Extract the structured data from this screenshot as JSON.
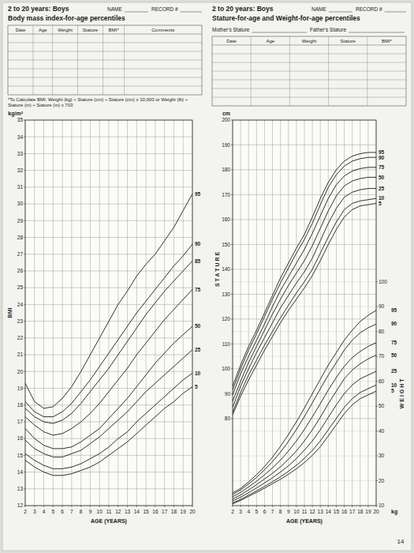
{
  "page": {
    "number": "14",
    "panels": [
      {
        "name_label": "NAME",
        "record_label": "RECORD #",
        "form_columns": [
          "Date",
          "Age",
          "Weight",
          "Stature",
          "BMI*",
          "Comments"
        ],
        "note": "*To Calculate BMI: Weight (kg) ÷ Stature (cm) ÷ Stature (cm) x 10,000 or Weight (lb) ÷ Stature (in) ÷ Stature (in) x 703"
      },
      {
        "name_label": "NAME",
        "record_label": "RECORD #",
        "parent_labels": [
          "Mother's Stature",
          "Father's Stature"
        ],
        "form_columns": [
          "Date",
          "Age",
          "Weight",
          "Stature",
          "BMI*"
        ]
      }
    ]
  },
  "chart_data": [
    {
      "type": "line",
      "title": "2 to 20 years: Boys",
      "subtitle": "Body mass index-for-age percentiles",
      "x_label": "AGE (YEARS)",
      "y_label": "BMI",
      "annotations": [
        "kg/m²"
      ],
      "x": [
        2,
        3,
        4,
        5,
        6,
        7,
        8,
        9,
        10,
        11,
        12,
        13,
        14,
        15,
        16,
        17,
        18,
        19,
        20
      ],
      "xlim": [
        2,
        20
      ],
      "xticks": [
        2,
        3,
        4,
        5,
        6,
        7,
        8,
        9,
        10,
        11,
        12,
        13,
        14,
        15,
        16,
        17,
        18,
        19,
        20
      ],
      "ylim": [
        12,
        35
      ],
      "yticks": [
        12,
        13,
        14,
        15,
        16,
        17,
        18,
        19,
        20,
        21,
        22,
        23,
        24,
        25,
        26,
        27,
        28,
        29,
        30,
        31,
        32,
        33,
        34,
        35
      ],
      "grid": true,
      "series": [
        {
          "name": "5",
          "color": "#1a1a1a",
          "values": [
            14.7,
            14.3,
            14.0,
            13.8,
            13.8,
            13.9,
            14.1,
            14.3,
            14.6,
            15.0,
            15.4,
            15.8,
            16.3,
            16.8,
            17.3,
            17.8,
            18.2,
            18.7,
            19.1
          ]
        },
        {
          "name": "10",
          "color": "#1a1a1a",
          "values": [
            15.1,
            14.7,
            14.4,
            14.2,
            14.2,
            14.3,
            14.5,
            14.8,
            15.1,
            15.5,
            16.0,
            16.4,
            17.0,
            17.5,
            18.0,
            18.5,
            19.0,
            19.5,
            19.9
          ]
        },
        {
          "name": "25",
          "color": "#1a1a1a",
          "values": [
            15.9,
            15.4,
            15.1,
            14.9,
            14.9,
            15.1,
            15.3,
            15.7,
            16.1,
            16.6,
            17.1,
            17.6,
            18.2,
            18.8,
            19.3,
            19.8,
            20.3,
            20.8,
            21.3
          ]
        },
        {
          "name": "50",
          "color": "#1a1a1a",
          "values": [
            16.6,
            16.0,
            15.6,
            15.4,
            15.4,
            15.5,
            15.8,
            16.2,
            16.6,
            17.2,
            17.8,
            18.4,
            19.1,
            19.8,
            20.5,
            21.1,
            21.7,
            22.2,
            22.7
          ]
        },
        {
          "name": "75",
          "color": "#1a1a1a",
          "values": [
            17.3,
            16.8,
            16.4,
            16.2,
            16.3,
            16.6,
            17.0,
            17.5,
            18.1,
            18.8,
            19.5,
            20.2,
            21.0,
            21.7,
            22.4,
            23.1,
            23.7,
            24.3,
            24.9
          ]
        },
        {
          "name": "85",
          "color": "#1a1a1a",
          "values": [
            17.8,
            17.3,
            17.0,
            16.9,
            17.1,
            17.5,
            18.1,
            18.8,
            19.5,
            20.2,
            21.0,
            21.8,
            22.6,
            23.4,
            24.1,
            24.8,
            25.4,
            26.0,
            26.6
          ]
        },
        {
          "name": "90",
          "color": "#1a1a1a",
          "values": [
            18.2,
            17.6,
            17.3,
            17.3,
            17.6,
            18.1,
            18.8,
            19.5,
            20.3,
            21.1,
            21.9,
            22.7,
            23.5,
            24.2,
            24.9,
            25.6,
            26.3,
            26.9,
            27.6
          ]
        },
        {
          "name": "95",
          "color": "#1a1a1a",
          "values": [
            19.3,
            18.2,
            17.8,
            17.9,
            18.4,
            19.1,
            20.0,
            21.0,
            22.0,
            23.0,
            24.0,
            24.8,
            25.7,
            26.4,
            27.0,
            27.8,
            28.6,
            29.6,
            30.6
          ]
        }
      ]
    },
    {
      "type": "line",
      "title": "2 to 20 years: Boys",
      "subtitle": "Stature-for-age and Weight-for-age percentiles",
      "x_label": "AGE (YEARS)",
      "y_label": "S T A T U R E",
      "y2_label": "W E I G H T",
      "annotations": [
        "cm",
        "kg"
      ],
      "x": [
        2,
        3,
        4,
        5,
        6,
        7,
        8,
        9,
        10,
        11,
        12,
        13,
        14,
        15,
        16,
        17,
        18,
        19,
        20
      ],
      "xlim": [
        2,
        20
      ],
      "xticks": [
        2,
        3,
        4,
        5,
        6,
        7,
        8,
        9,
        10,
        11,
        12,
        13,
        14,
        15,
        16,
        17,
        18,
        19,
        20
      ],
      "ylim": [
        45,
        200
      ],
      "yticks": [
        80,
        90,
        100,
        110,
        120,
        130,
        140,
        150,
        160,
        170,
        180,
        190,
        200
      ],
      "y2lim": [
        10,
        165
      ],
      "y2ticks": [
        10,
        20,
        30,
        40,
        50,
        60,
        70,
        80,
        90,
        100
      ],
      "grid": true,
      "series": [
        {
          "name": "5",
          "color": "#1a1a1a",
          "values": [
            81.5,
            89,
            95.5,
            101.5,
            107.5,
            113,
            118.5,
            123.5,
            128,
            132.5,
            137.5,
            143.5,
            150,
            156,
            161,
            164,
            165.5,
            166,
            166.5
          ]
        },
        {
          "name": "10",
          "color": "#1a1a1a",
          "values": [
            82.5,
            90.5,
            97.5,
            103.5,
            109.5,
            115,
            120.5,
            125.5,
            130.5,
            135,
            140,
            146.5,
            153,
            159,
            164,
            166.5,
            167.5,
            168,
            168.5
          ]
        },
        {
          "name": "25",
          "color": "#1a1a1a",
          "values": [
            84.5,
            93,
            100,
            106.5,
            112.5,
            118.5,
            124.5,
            129.5,
            134.5,
            139,
            144.5,
            151.5,
            158.5,
            164.5,
            169,
            171,
            172,
            172.5,
            172.5
          ]
        },
        {
          "name": "50",
          "color": "#1a1a1a",
          "values": [
            87,
            95,
            102.5,
            109,
            115.5,
            122,
            128,
            133.5,
            138.5,
            143.5,
            149.5,
            156.5,
            163.5,
            169.5,
            173.5,
            175.5,
            176.5,
            177,
            177
          ]
        },
        {
          "name": "75",
          "color": "#1a1a1a",
          "values": [
            89.5,
            98,
            105,
            111.5,
            118,
            125,
            131.5,
            137,
            142.5,
            148,
            154.5,
            161.5,
            168.5,
            174,
            177.5,
            179.5,
            180.5,
            181,
            181
          ]
        },
        {
          "name": "90",
          "color": "#1a1a1a",
          "values": [
            91.5,
            100,
            107.5,
            114,
            121,
            128,
            134.5,
            140.5,
            146.5,
            152,
            158.5,
            166,
            173,
            178,
            181.5,
            183.5,
            184.5,
            185,
            185
          ]
        },
        {
          "name": "95",
          "color": "#1a1a1a",
          "values": [
            93,
            101.5,
            109,
            115.5,
            122.5,
            129.5,
            136.5,
            142.5,
            148.5,
            154,
            161,
            168.5,
            175,
            180,
            183.5,
            185.5,
            186.5,
            187,
            187
          ]
        },
        {
          "name": "5",
          "color": "#1a1a1a",
          "axis": "y2",
          "values": [
            10.7,
            12.1,
            13.7,
            15.3,
            17.0,
            18.8,
            20.6,
            22.6,
            24.8,
            27.3,
            30.2,
            33.7,
            38,
            42.5,
            47,
            50.5,
            53,
            54.5,
            56
          ]
        },
        {
          "name": "10",
          "color": "#1a1a1a",
          "axis": "y2",
          "values": [
            11.1,
            12.5,
            14.2,
            15.9,
            17.7,
            19.6,
            21.6,
            23.8,
            26.2,
            29,
            32.2,
            36,
            40.5,
            45,
            49.5,
            53,
            55.5,
            57,
            58.5
          ]
        },
        {
          "name": "25",
          "color": "#1a1a1a",
          "axis": "y2",
          "values": [
            11.9,
            13.4,
            15.2,
            17.1,
            19.1,
            21.2,
            23.5,
            26,
            28.9,
            32.3,
            36,
            40.5,
            45.5,
            50.5,
            55,
            58.5,
            61,
            62.5,
            64
          ]
        },
        {
          "name": "50",
          "color": "#1a1a1a",
          "axis": "y2",
          "values": [
            12.7,
            14.3,
            16.3,
            18.4,
            20.7,
            23.0,
            25.6,
            28.6,
            32.0,
            36.0,
            40.5,
            45.5,
            51,
            56,
            61,
            64.5,
            67,
            69,
            70.5
          ]
        },
        {
          "name": "75",
          "color": "#1a1a1a",
          "axis": "y2",
          "values": [
            13.6,
            15.3,
            17.5,
            19.8,
            22.4,
            25.2,
            28.3,
            31.9,
            36,
            40.6,
            45.7,
            51,
            56.5,
            61.5,
            66,
            69.5,
            72,
            74,
            75.5
          ]
        },
        {
          "name": "90",
          "color": "#1a1a1a",
          "axis": "y2",
          "values": [
            14.5,
            16.3,
            18.7,
            21.3,
            24.4,
            27.7,
            31.5,
            35.8,
            40.6,
            45.8,
            51.3,
            57,
            62.5,
            67.5,
            72.5,
            76.5,
            79.5,
            81.5,
            83
          ]
        },
        {
          "name": "95",
          "color": "#1a1a1a",
          "axis": "y2",
          "values": [
            15.1,
            16.9,
            19.5,
            22.4,
            25.7,
            29.5,
            33.8,
            38.6,
            43.7,
            49.2,
            55,
            60.8,
            66.5,
            71.5,
            76.5,
            80.5,
            84,
            86.5,
            88.5
          ]
        }
      ]
    }
  ]
}
